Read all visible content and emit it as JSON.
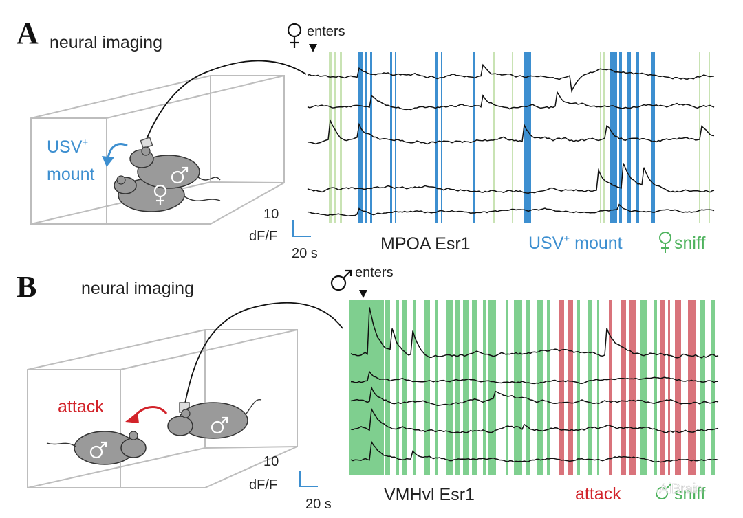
{
  "panel_a": {
    "letter": "A",
    "title": "neural imaging",
    "arrival_label": "enters",
    "behavior_label_line1": "USV",
    "behavior_label_sup": "+",
    "behavior_label_line2": "mount",
    "region_label": "MPOA Esr1",
    "legend_usv": "USV",
    "legend_usv_sup": "+",
    "legend_usv_rest": " mount",
    "legend_sniff": "sniff",
    "scale_y": "10",
    "scale_y_unit": "dF/F",
    "scale_x": "20 s"
  },
  "panel_b": {
    "letter": "B",
    "title": "neural imaging",
    "arrival_label": "enters",
    "behavior_label": "attack",
    "region_label": "VMHvl Esr1",
    "legend_attack": "attack",
    "legend_sniff": "sniff",
    "scale_y": "10",
    "scale_y_unit": "dF/F",
    "scale_x": "20 s"
  },
  "watermark": "AiBrain",
  "colors": {
    "usv_mount": "#3d8fd0",
    "sniff_light": "#c9e3b4",
    "sniff_green": "#7fcf8f",
    "attack": "#d9737b",
    "trace": "#111111",
    "box": "#bdbdbd",
    "mouse": "#9a9a9a"
  },
  "icons": [
    "female-symbol-icon",
    "male-symbol-icon",
    "arrow-down-icon",
    "mouse-icon",
    "optic-fiber-icon"
  ]
}
